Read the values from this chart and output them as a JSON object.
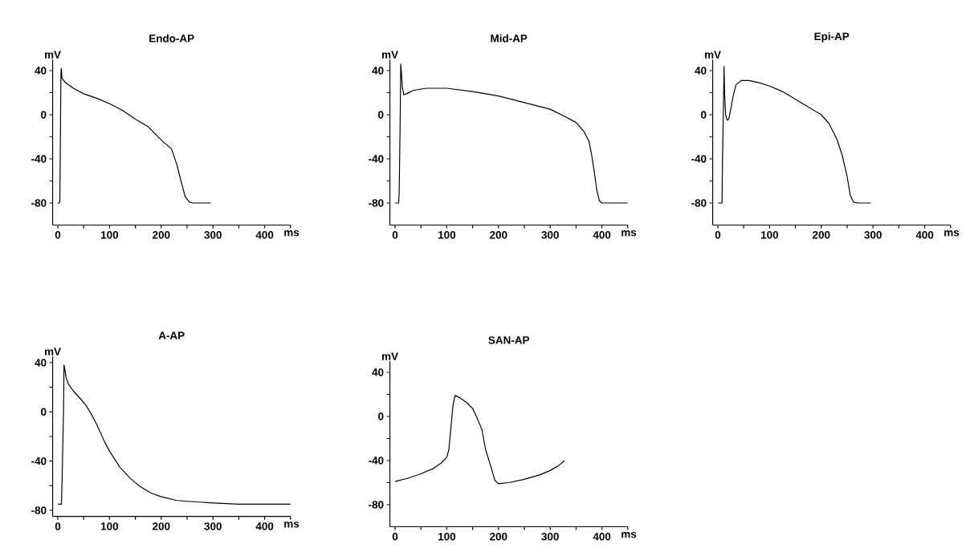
{
  "chart_data": [
    {
      "type": "line",
      "title": "Endo-AP",
      "xlabel": "ms",
      "ylabel": "mV",
      "color": "#000000",
      "x": [
        0,
        3,
        4,
        5,
        6,
        7,
        8,
        15,
        30,
        50,
        75,
        100,
        125,
        150,
        175,
        200,
        220,
        230,
        241,
        246,
        254,
        262,
        296
      ],
      "values": [
        -80,
        -80,
        -78,
        -20,
        38,
        42,
        33,
        29,
        24,
        19,
        15,
        10,
        4,
        -4,
        -11,
        -23,
        -31,
        -45,
        -65,
        -74,
        -79,
        -80,
        -80
      ],
      "xlim": [
        -10,
        450
      ],
      "ylim": [
        -100,
        50
      ],
      "xticks": [
        0,
        {
          "value": 50,
          "label": null
        },
        100,
        {
          "value": 150,
          "label": null
        },
        200,
        {
          "value": 250,
          "label": null
        },
        300,
        {
          "value": 350,
          "label": null
        },
        400,
        {
          "value": 450,
          "label": null
        }
      ],
      "yticks": [
        -80,
        {
          "value": -60,
          "label": null
        },
        -40,
        {
          "value": -20,
          "label": null
        },
        0,
        {
          "value": 20,
          "label": null
        },
        40
      ]
    },
    {
      "type": "line",
      "title": "Mid-AP",
      "xlabel": "ms",
      "ylabel": "mV",
      "color": "#000000",
      "x": [
        0,
        7,
        8,
        10,
        11,
        12,
        14,
        17,
        22,
        35,
        60,
        100,
        150,
        200,
        250,
        300,
        330,
        350,
        365,
        375,
        380,
        385,
        390,
        395,
        400,
        450
      ],
      "values": [
        -80,
        -80,
        -70,
        0,
        46,
        40,
        25,
        18,
        19,
        22,
        24,
        24,
        21,
        17,
        11,
        5,
        -2,
        -7,
        -15,
        -24,
        -36,
        -51,
        -68,
        -78,
        -80,
        -80
      ],
      "xlim": [
        -10,
        450
      ],
      "ylim": [
        -100,
        50
      ],
      "xticks": [
        0,
        {
          "value": 50,
          "label": null
        },
        100,
        {
          "value": 150,
          "label": null
        },
        200,
        {
          "value": 250,
          "label": null
        },
        300,
        {
          "value": 350,
          "label": null
        },
        400,
        {
          "value": 450,
          "label": null
        }
      ],
      "yticks": [
        -80,
        {
          "value": -60,
          "label": null
        },
        -40,
        {
          "value": -20,
          "label": null
        },
        0,
        {
          "value": 20,
          "label": null
        },
        40
      ]
    },
    {
      "type": "line",
      "title": "Epi-AP",
      "xlabel": "ms",
      "ylabel": "mV",
      "color": "#000000",
      "x": [
        0,
        8,
        9,
        11,
        12,
        13,
        15,
        18,
        21,
        25,
        30,
        35,
        45,
        60,
        80,
        100,
        125,
        150,
        175,
        200,
        215,
        230,
        240,
        250,
        256,
        262,
        270,
        296
      ],
      "values": [
        -80,
        -80,
        -40,
        12,
        44,
        20,
        0,
        -5,
        -4,
        5,
        18,
        27,
        31,
        31,
        29,
        26,
        21,
        14,
        7,
        0,
        -8,
        -22,
        -36,
        -56,
        -73,
        -79,
        -80,
        -80
      ],
      "xlim": [
        -10,
        450
      ],
      "ylim": [
        -100,
        50
      ],
      "xticks": [
        0,
        {
          "value": 50,
          "label": null
        },
        100,
        {
          "value": 150,
          "label": null
        },
        200,
        {
          "value": 250,
          "label": null
        },
        300,
        {
          "value": 350,
          "label": null
        },
        400,
        {
          "value": 450,
          "label": null
        }
      ],
      "yticks": [
        -80,
        {
          "value": -60,
          "label": null
        },
        -40,
        {
          "value": -20,
          "label": null
        },
        0,
        {
          "value": 20,
          "label": null
        },
        40
      ]
    },
    {
      "type": "line",
      "title": "A-AP",
      "xlabel": "ms",
      "ylabel": "mV",
      "color": "#000000",
      "x": [
        0,
        7,
        8,
        11,
        12,
        13,
        16,
        20,
        30,
        45,
        55,
        65,
        75,
        90,
        100,
        120,
        140,
        160,
        180,
        200,
        230,
        260,
        300,
        350,
        450
      ],
      "values": [
        -75,
        -75,
        -60,
        0,
        38,
        36,
        28,
        23,
        17,
        10,
        5,
        -2,
        -10,
        -24,
        -32,
        -45,
        -54,
        -61,
        -66,
        -69,
        -72,
        -73,
        -74,
        -75,
        -75
      ],
      "xlim": [
        -10,
        450
      ],
      "ylim": [
        -85,
        45
      ],
      "xticks": [
        0,
        {
          "value": 50,
          "label": null
        },
        100,
        {
          "value": 150,
          "label": null
        },
        200,
        {
          "value": 250,
          "label": null
        },
        300,
        {
          "value": 350,
          "label": null
        },
        400,
        {
          "value": 450,
          "label": null
        }
      ],
      "yticks": [
        -80,
        {
          "value": -60,
          "label": null
        },
        -40,
        {
          "value": -20,
          "label": null
        },
        0,
        {
          "value": 20,
          "label": null
        },
        40
      ]
    },
    {
      "type": "line",
      "title": "SAN-AP",
      "xlabel": "ms",
      "ylabel": "mV",
      "color": "#000000",
      "x": [
        0,
        25,
        50,
        75,
        90,
        100,
        104,
        108,
        112,
        116,
        125,
        140,
        150,
        160,
        168,
        175,
        185,
        193,
        200,
        220,
        250,
        280,
        300,
        315,
        328
      ],
      "values": [
        -59,
        -56,
        -52,
        -47,
        -42,
        -37,
        -30,
        -10,
        10,
        19,
        17,
        12,
        7,
        -3,
        -12,
        -30,
        -45,
        -58,
        -61,
        -60,
        -57,
        -53,
        -49,
        -45,
        -40
      ],
      "xlim": [
        -10,
        450
      ],
      "ylim": [
        -100,
        50
      ],
      "xticks": [
        0,
        {
          "value": 50,
          "label": null
        },
        100,
        {
          "value": 150,
          "label": null
        },
        200,
        {
          "value": 250,
          "label": null
        },
        300,
        {
          "value": 350,
          "label": null
        },
        400,
        {
          "value": 450,
          "label": null
        }
      ],
      "yticks": [
        -80,
        {
          "value": -60,
          "label": null
        },
        -40,
        {
          "value": -20,
          "label": null
        },
        0,
        {
          "value": 20,
          "label": null
        },
        40
      ]
    }
  ]
}
